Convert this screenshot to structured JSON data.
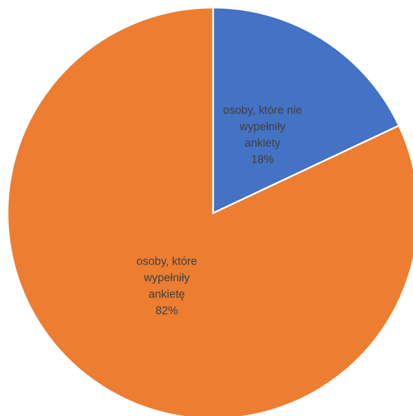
{
  "chart_data": {
    "type": "pie",
    "title": "",
    "legend": "none",
    "slices": [
      {
        "label_lines": [
          "osoby, które nie",
          "wypełniły",
          "ankiety"
        ],
        "value": 18,
        "value_label": "18%",
        "color": "#4472C4"
      },
      {
        "label_lines": [
          "osoby, które",
          "wypełniły",
          "ankietę"
        ],
        "value": 82,
        "value_label": "82%",
        "color": "#ED7D31"
      }
    ]
  }
}
